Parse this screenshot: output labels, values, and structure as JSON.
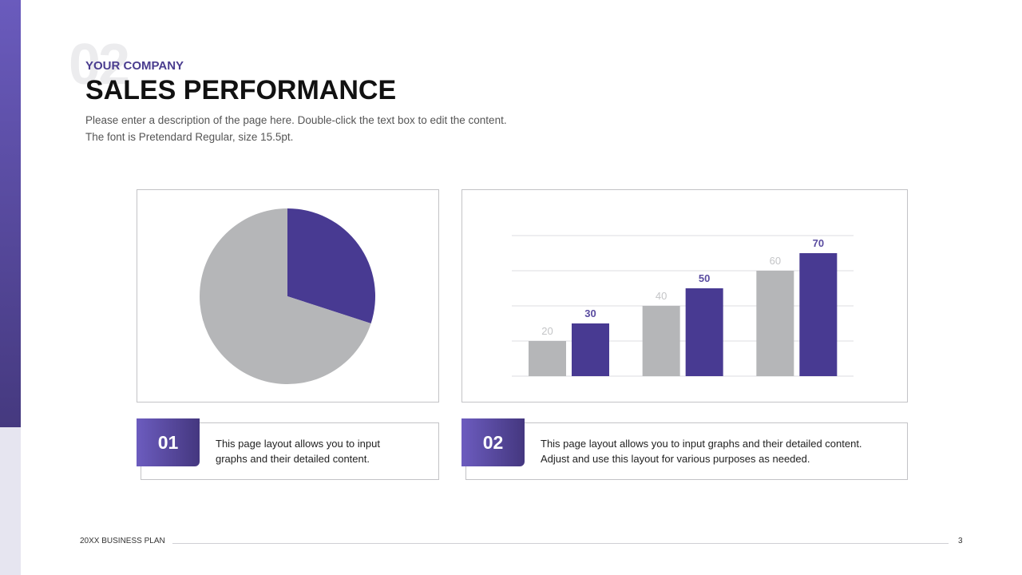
{
  "header": {
    "watermark": "02",
    "eyebrow": "YOUR COMPANY",
    "title": "SALES PERFORMANCE",
    "description": [
      "Please enter a description of the page here. Double-click the text box to edit the content.",
      "The font is Pretendard Regular, size 15.5pt."
    ]
  },
  "chart_data": [
    {
      "type": "pie",
      "values": [
        30,
        70
      ],
      "colors": [
        "#483a92",
        "#b5b6b8"
      ]
    },
    {
      "type": "bar",
      "categories": [
        null,
        null,
        null
      ],
      "series": [
        {
          "color": "#b5b6b8",
          "label_color": "#c4c5c7",
          "values": [
            20,
            40,
            60
          ]
        },
        {
          "color": "#483a92",
          "label_color": "#5a4ca0",
          "values": [
            30,
            50,
            70
          ]
        }
      ],
      "ylim": [
        0,
        80
      ],
      "yticks": [
        0,
        20,
        40,
        60,
        80
      ],
      "grid": true
    }
  ],
  "captions": [
    {
      "number": "01",
      "lines": [
        "This page layout allows you to input",
        "graphs and their detailed content."
      ]
    },
    {
      "number": "02",
      "lines": [
        "This page layout allows you to input graphs and their detailed content.",
        "Adjust and use this layout for various purposes as needed."
      ]
    }
  ],
  "footer": {
    "label": "20XX BUSINESS PLAN",
    "page": "3"
  }
}
